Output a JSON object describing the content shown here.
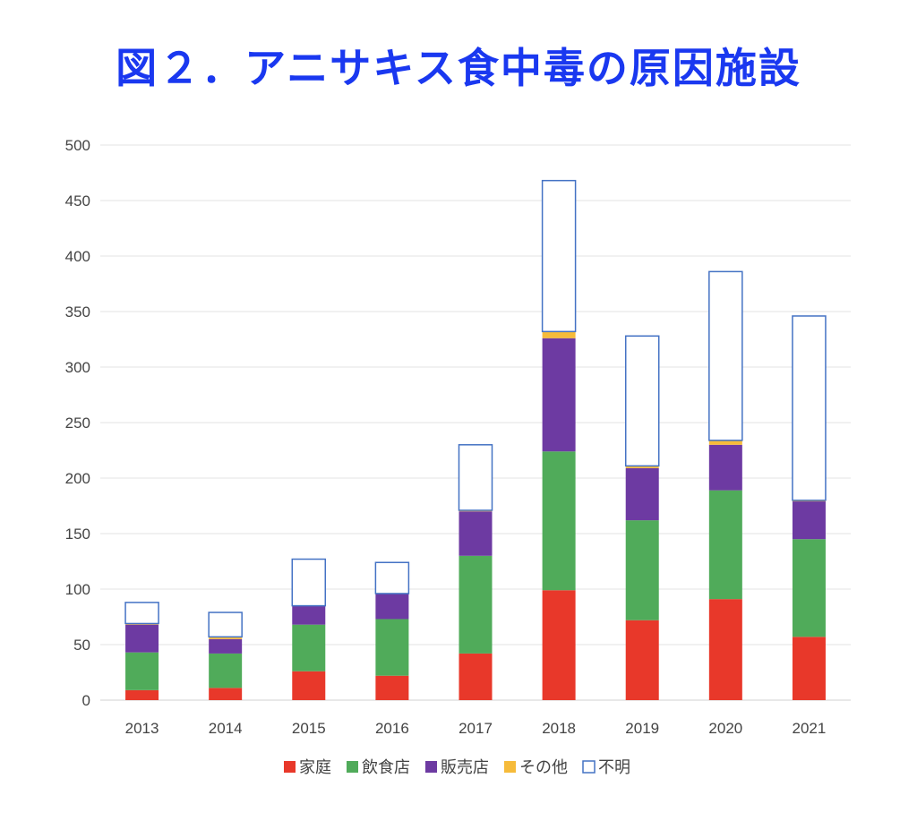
{
  "title": "図２．アニサキス食中毒の原因施設",
  "chart_data": {
    "type": "bar",
    "stacked": true,
    "categories": [
      "2013",
      "2014",
      "2015",
      "2016",
      "2017",
      "2018",
      "2019",
      "2020",
      "2021"
    ],
    "series": [
      {
        "name": "家庭",
        "color": "#e8382a",
        "values": [
          9,
          11,
          26,
          22,
          42,
          99,
          72,
          91,
          57
        ]
      },
      {
        "name": "飲食店",
        "color": "#50ab5a",
        "values": [
          34,
          31,
          42,
          51,
          88,
          125,
          90,
          98,
          88
        ]
      },
      {
        "name": "販売店",
        "color": "#6d3aa2",
        "values": [
          25,
          13,
          17,
          23,
          40,
          102,
          47,
          41,
          34
        ]
      },
      {
        "name": "その他",
        "color": "#f6bb3a",
        "values": [
          1,
          2,
          0,
          0,
          1,
          6,
          2,
          4,
          1
        ]
      },
      {
        "name": "不明",
        "color": "#4472c4",
        "outline": true,
        "values": [
          19,
          22,
          42,
          28,
          59,
          136,
          117,
          152,
          166
        ]
      }
    ],
    "ylim": [
      0,
      500
    ],
    "yticks": [
      0,
      50,
      100,
      150,
      200,
      250,
      300,
      350,
      400,
      450,
      500
    ],
    "grid": true,
    "legend_position": "bottom",
    "title_color": "#1a38f0"
  }
}
